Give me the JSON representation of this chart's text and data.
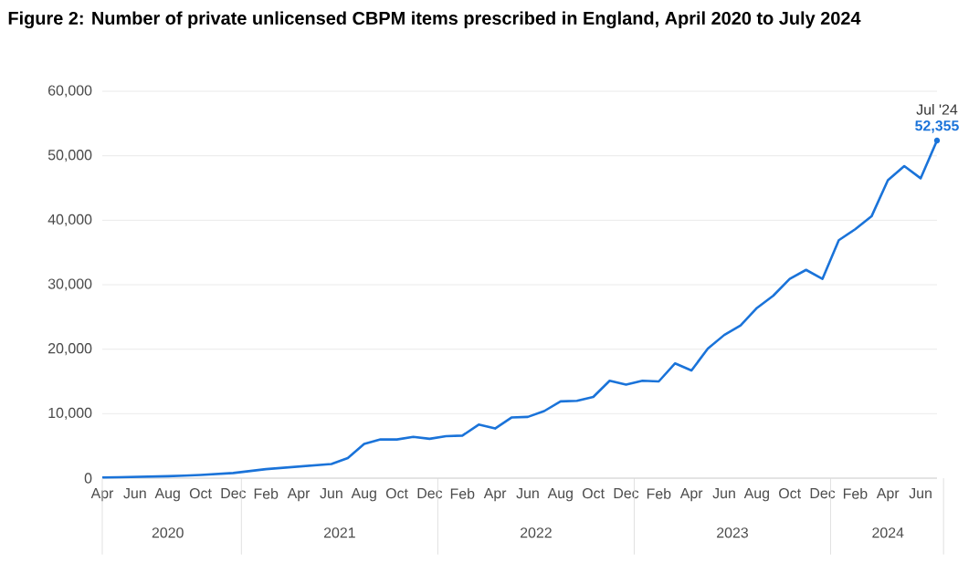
{
  "chart_data": {
    "type": "line",
    "title": "Figure 2: Number of private unlicensed CBPM items prescribed in England, April 2020 to July 2024",
    "x": [
      "2020-04",
      "2020-05",
      "2020-06",
      "2020-07",
      "2020-08",
      "2020-09",
      "2020-10",
      "2020-11",
      "2020-12",
      "2021-01",
      "2021-02",
      "2021-03",
      "2021-04",
      "2021-05",
      "2021-06",
      "2021-07",
      "2021-08",
      "2021-09",
      "2021-10",
      "2021-11",
      "2021-12",
      "2022-01",
      "2022-02",
      "2022-03",
      "2022-04",
      "2022-05",
      "2022-06",
      "2022-07",
      "2022-08",
      "2022-09",
      "2022-10",
      "2022-11",
      "2022-12",
      "2023-01",
      "2023-02",
      "2023-03",
      "2023-04",
      "2023-05",
      "2023-06",
      "2023-07",
      "2023-08",
      "2023-09",
      "2023-10",
      "2023-11",
      "2023-12",
      "2024-01",
      "2024-02",
      "2024-03",
      "2024-04",
      "2024-05",
      "2024-06",
      "2024-07"
    ],
    "series": [
      {
        "color": "#1a73d9",
        "values": [
          100,
          150,
          200,
          250,
          300,
          400,
          500,
          650,
          800,
          1100,
          1400,
          1600,
          1800,
          2000,
          2200,
          3100,
          5300,
          6000,
          6000,
          6400,
          6100,
          6500,
          6600,
          8300,
          7700,
          9400,
          9500,
          10400,
          11900,
          12000,
          12600,
          15100,
          14500,
          15100,
          15000,
          17800,
          16700,
          20100,
          22200,
          23700,
          26400,
          28300,
          30900,
          32300,
          30900,
          36900,
          38600,
          40600,
          46200,
          48400,
          46500,
          52355
        ],
        "value_labels": [
          null,
          null,
          null,
          null,
          null,
          null,
          null,
          null,
          null,
          null,
          null,
          null,
          null,
          null,
          null,
          null,
          null,
          null,
          null,
          null,
          null,
          null,
          null,
          null,
          null,
          null,
          null,
          null,
          null,
          null,
          null,
          null,
          null,
          null,
          null,
          null,
          null,
          null,
          null,
          null,
          null,
          null,
          null,
          null,
          null,
          null,
          null,
          null,
          null,
          null,
          null,
          "52,355"
        ]
      }
    ],
    "xlim": [
      "2020-04",
      "2024-07"
    ],
    "xticks": [
      {
        "value": "2020-04",
        "label": "Apr"
      },
      {
        "value": "2020-06",
        "label": "Jun"
      },
      {
        "value": "2020-08",
        "label": "Aug"
      },
      {
        "value": "2020-10",
        "label": "Oct"
      },
      {
        "value": "2020-12",
        "label": "Dec"
      },
      {
        "value": "2021-02",
        "label": "Feb"
      },
      {
        "value": "2021-04",
        "label": "Apr"
      },
      {
        "value": "2021-06",
        "label": "Jun"
      },
      {
        "value": "2021-08",
        "label": "Aug"
      },
      {
        "value": "2021-10",
        "label": "Oct"
      },
      {
        "value": "2021-12",
        "label": "Dec"
      },
      {
        "value": "2022-02",
        "label": "Feb"
      },
      {
        "value": "2022-04",
        "label": "Apr"
      },
      {
        "value": "2022-06",
        "label": "Jun"
      },
      {
        "value": "2022-08",
        "label": "Aug"
      },
      {
        "value": "2022-10",
        "label": "Oct"
      },
      {
        "value": "2022-12",
        "label": "Dec"
      },
      {
        "value": "2023-02",
        "label": "Feb"
      },
      {
        "value": "2023-04",
        "label": "Apr"
      },
      {
        "value": "2023-06",
        "label": "Jun"
      },
      {
        "value": "2023-08",
        "label": "Aug"
      },
      {
        "value": "2023-10",
        "label": "Oct"
      },
      {
        "value": "2023-12",
        "label": "Dec"
      },
      {
        "value": "2024-02",
        "label": "Feb"
      },
      {
        "value": "2024-04",
        "label": "Apr"
      },
      {
        "value": "2024-06",
        "label": "Jun"
      }
    ],
    "ylim": [
      0,
      60000
    ],
    "yticks": [
      0,
      {
        "value": 10000,
        "label": "10,000"
      },
      {
        "value": 20000,
        "label": "20,000"
      },
      {
        "value": 30000,
        "label": "30,000"
      },
      {
        "value": 40000,
        "label": "40,000"
      },
      {
        "value": 50000,
        "label": "50,000"
      },
      {
        "value": 60000,
        "label": "60,000"
      }
    ],
    "grid": "y",
    "marker": "none",
    "line_style": "solid",
    "annotations": [
      "2020",
      "2021",
      "2022",
      "2023",
      "2024",
      {
        "text": "Jul '24",
        "x": "2024-07",
        "y": 52355
      }
    ]
  }
}
